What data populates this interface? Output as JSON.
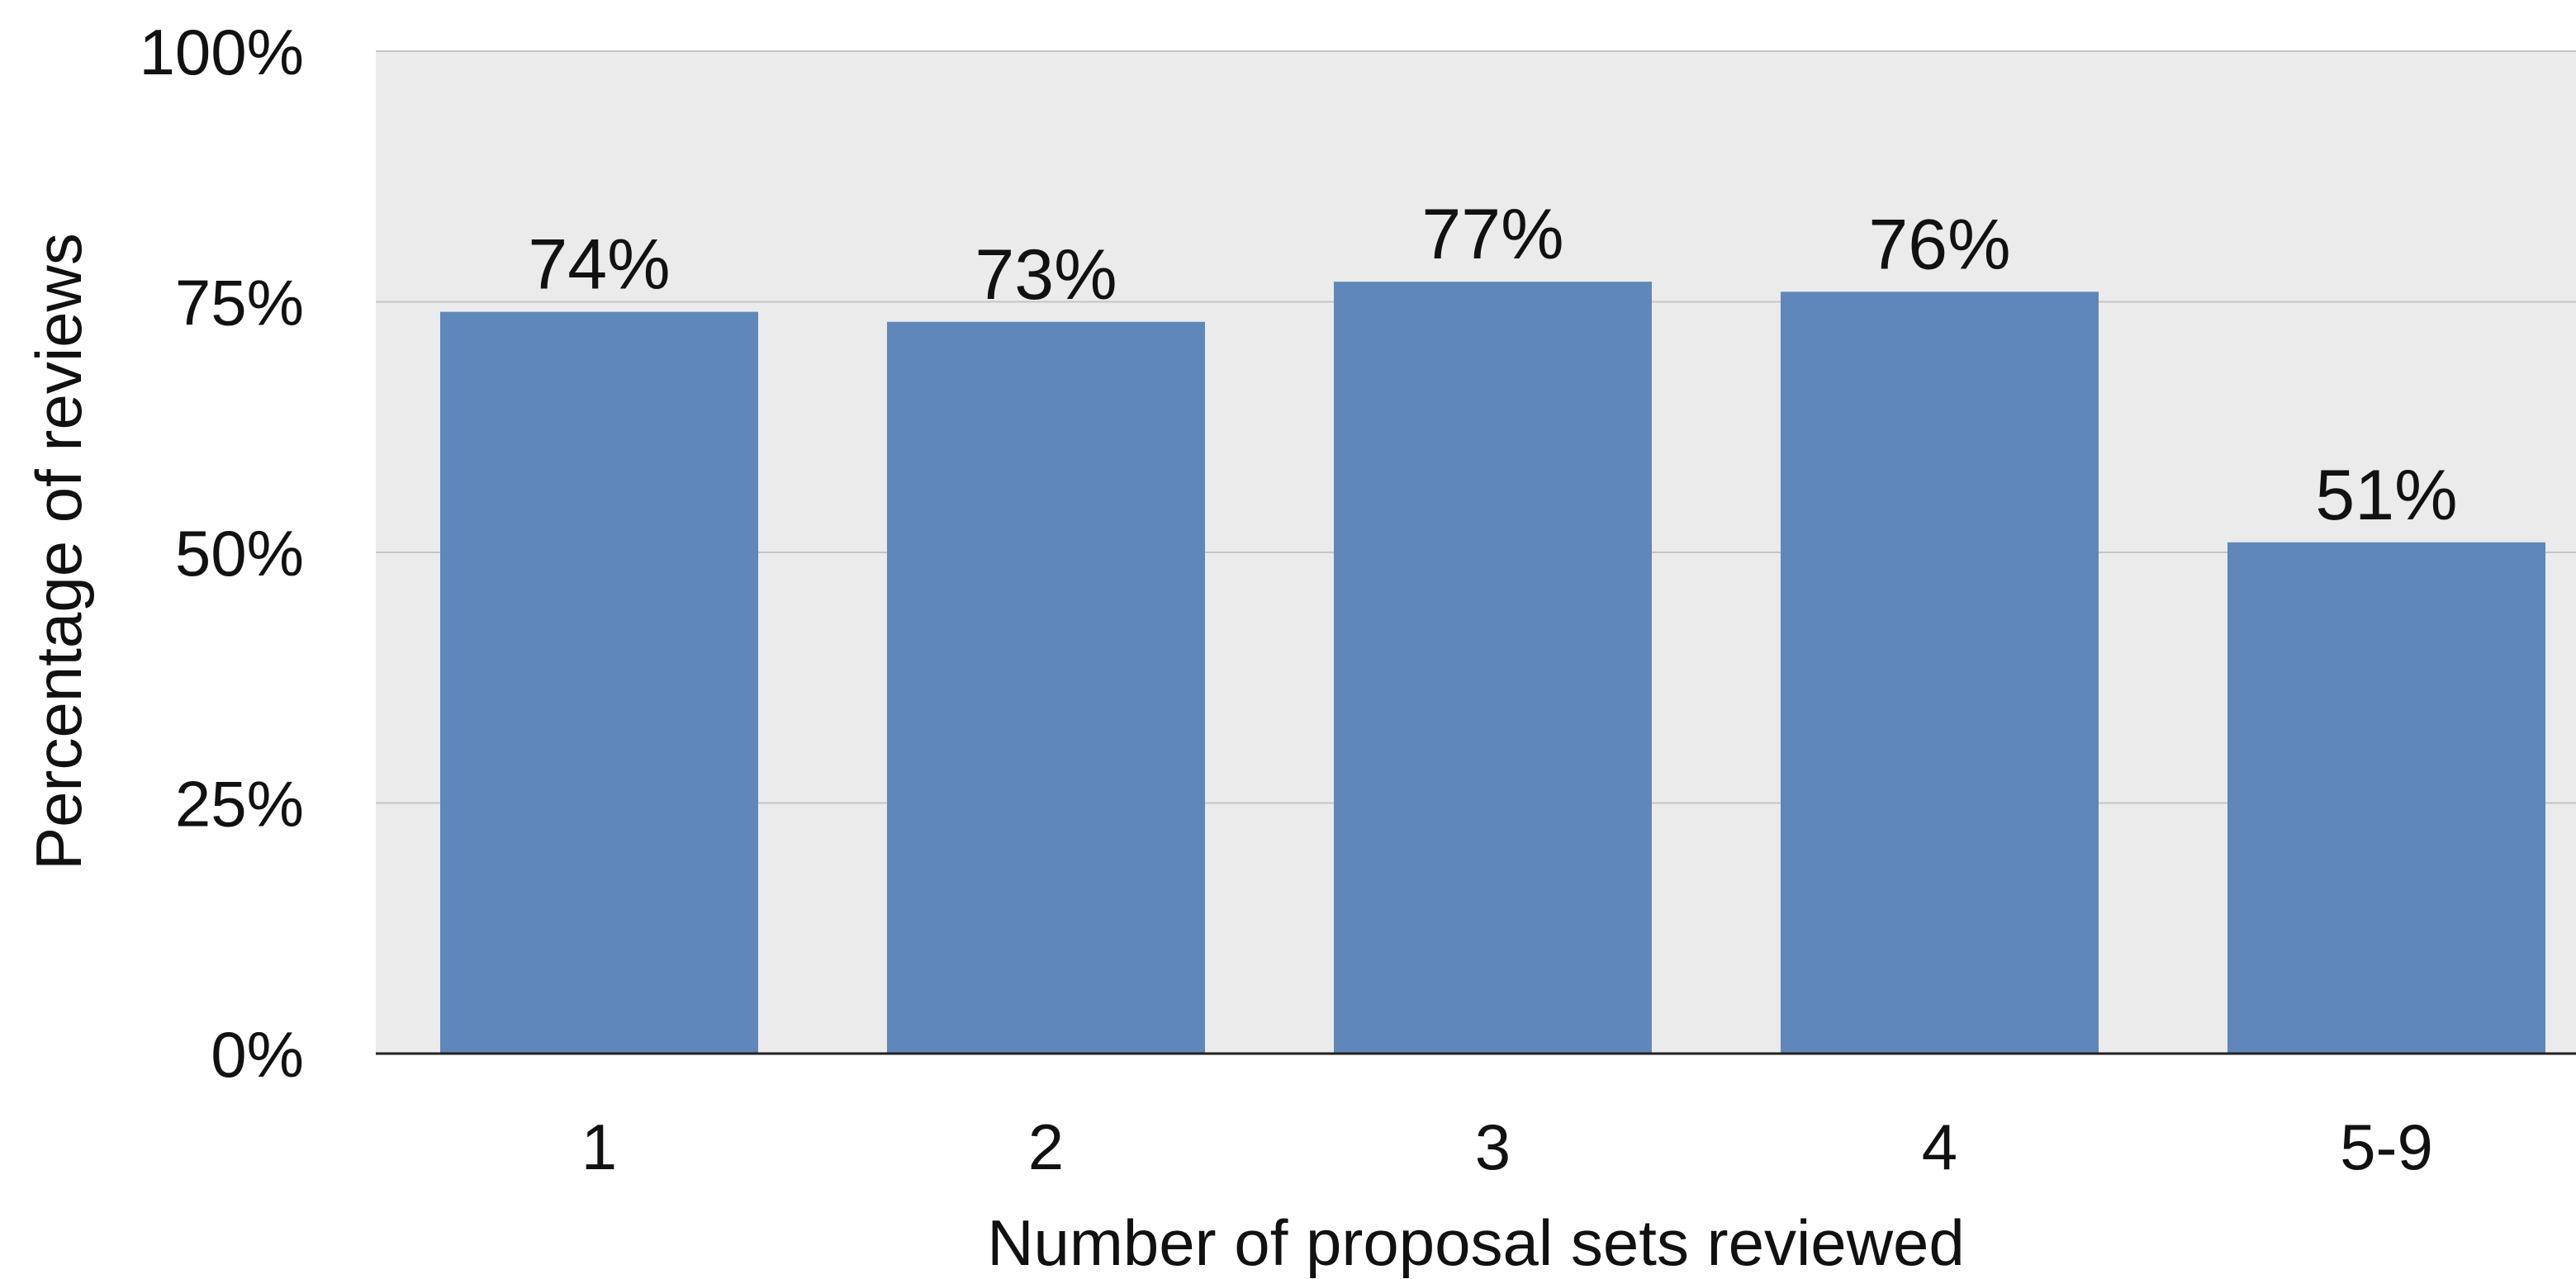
{
  "chart_data": {
    "type": "bar",
    "categories": [
      "1",
      "2",
      "3",
      "4",
      "5-9"
    ],
    "values": [
      74,
      73,
      77,
      76,
      51
    ],
    "data_labels": [
      "74%",
      "73%",
      "77%",
      "76%",
      "51%"
    ],
    "xlabel": "Number of proposal sets reviewed",
    "ylabel": "Percentage of reviews",
    "ylim": [
      0,
      100
    ],
    "yticks": [
      0,
      25,
      50,
      75,
      100
    ],
    "ytick_labels": [
      "0%",
      "25%",
      "50%",
      "75%",
      "100%"
    ],
    "grid": true,
    "legend": "none",
    "colors": {
      "bar": "#5f87b9",
      "plot_background": "#ebebeb",
      "gridline": "#c4c4c4",
      "axis_line": "#222222"
    }
  }
}
